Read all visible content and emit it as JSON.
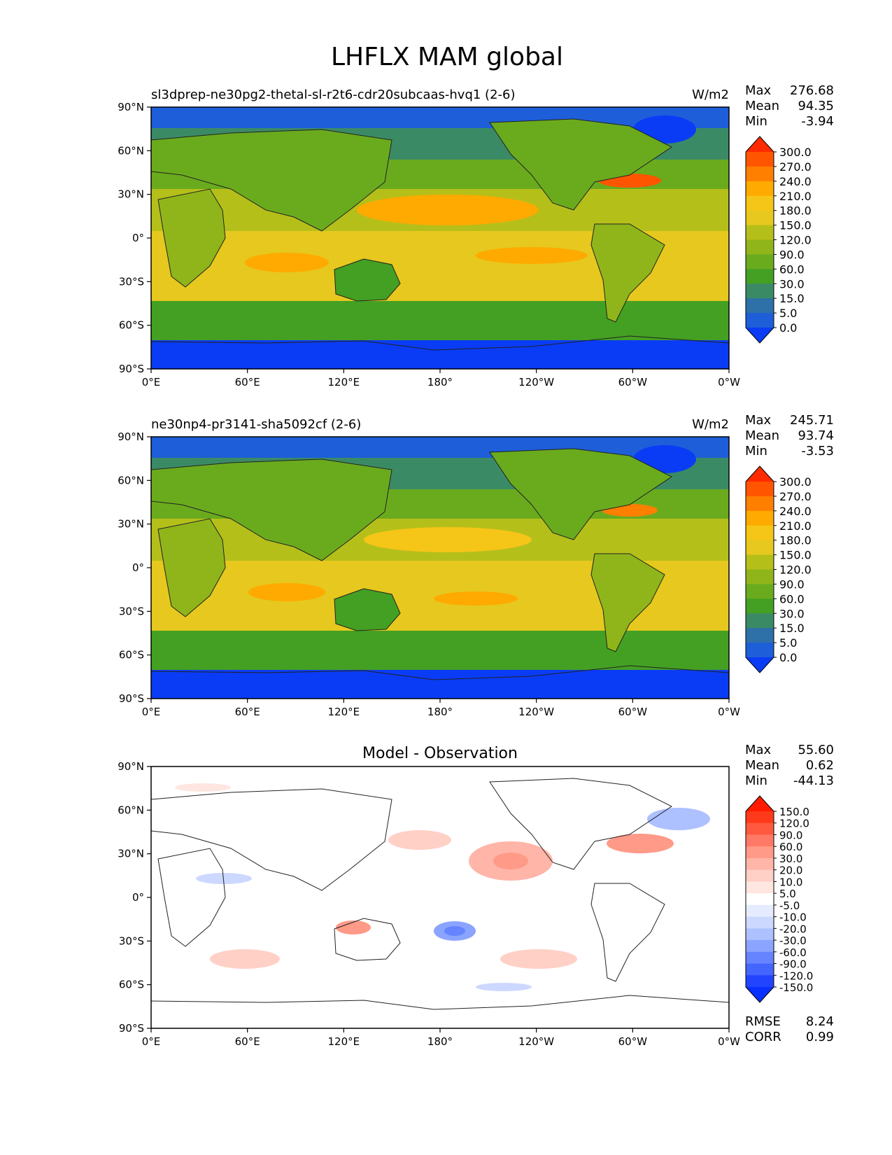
{
  "figure": {
    "title": "LHFLX MAM global"
  },
  "axes": {
    "x_ticks": [
      "0°E",
      "60°E",
      "120°E",
      "180°",
      "120°W",
      "60°W",
      "0°W"
    ],
    "y_ticks": [
      "90°N",
      "60°N",
      "30°N",
      "0°",
      "30°S",
      "60°S",
      "90°S"
    ],
    "x_range": [
      0,
      360
    ],
    "y_range": [
      -90,
      90
    ]
  },
  "chart_data": [
    {
      "type": "heatmap",
      "title": "sl3dprep-ne30pg2-thetal-sl-r2t6-cdr20subcaas-hvq1 (2-6)",
      "units": "W/m2",
      "stats": {
        "max_label": "Max",
        "max": "276.68",
        "mean_label": "Mean",
        "mean": "94.35",
        "min_label": "Min",
        "min": "-3.94"
      },
      "colorbar": {
        "levels": [
          "300.0",
          "270.0",
          "240.0",
          "210.0",
          "180.0",
          "150.0",
          "120.0",
          "90.0",
          "60.0",
          "30.0",
          "15.0",
          "5.0",
          "0.0"
        ],
        "colors": [
          "#ff2a00",
          "#ff5500",
          "#ff7f00",
          "#ffaa00",
          "#f5c518",
          "#e6c81e",
          "#b5bf1a",
          "#8fb51a",
          "#6aab1e",
          "#44a022",
          "#3b8a66",
          "#2e70a8",
          "#1e5ed8",
          "#0a3cf5"
        ]
      }
    },
    {
      "type": "heatmap",
      "title": "ne30np4-pr3141-sha5092cf (2-6)",
      "units": "W/m2",
      "stats": {
        "max_label": "Max",
        "max": "245.71",
        "mean_label": "Mean",
        "mean": "93.74",
        "min_label": "Min",
        "min": "-3.53"
      },
      "colorbar": {
        "levels": [
          "300.0",
          "270.0",
          "240.0",
          "210.0",
          "180.0",
          "150.0",
          "120.0",
          "90.0",
          "60.0",
          "30.0",
          "15.0",
          "5.0",
          "0.0"
        ],
        "colors": [
          "#ff2a00",
          "#ff5500",
          "#ff7f00",
          "#ffaa00",
          "#f5c518",
          "#e6c81e",
          "#b5bf1a",
          "#8fb51a",
          "#6aab1e",
          "#44a022",
          "#3b8a66",
          "#2e70a8",
          "#1e5ed8",
          "#0a3cf5"
        ]
      }
    },
    {
      "type": "heatmap",
      "title": "Model - Observation",
      "units": "",
      "stats": {
        "max_label": "Max",
        "max": "55.60",
        "mean_label": "Mean",
        "mean": "0.62",
        "min_label": "Min",
        "min": "-44.13"
      },
      "metrics": {
        "rmse_label": "RMSE",
        "rmse": "8.24",
        "corr_label": "CORR",
        "corr": "0.99"
      },
      "colorbar": {
        "levels": [
          "150.0",
          "120.0",
          "90.0",
          "60.0",
          "30.0",
          "20.0",
          "10.0",
          "5.0",
          "-5.0",
          "-10.0",
          "-20.0",
          "-30.0",
          "-60.0",
          "-90.0",
          "-120.0",
          "-150.0"
        ],
        "colors": [
          "#ff1a00",
          "#ff3a1a",
          "#ff5a40",
          "#ff7a66",
          "#ff9a88",
          "#ffb5a8",
          "#ffd0c6",
          "#ffe6e0",
          "#ffffff",
          "#e6ecff",
          "#ccd8ff",
          "#adc0ff",
          "#8aa4ff",
          "#6684ff",
          "#4466ff",
          "#2244ff",
          "#0a30ff"
        ]
      }
    }
  ]
}
